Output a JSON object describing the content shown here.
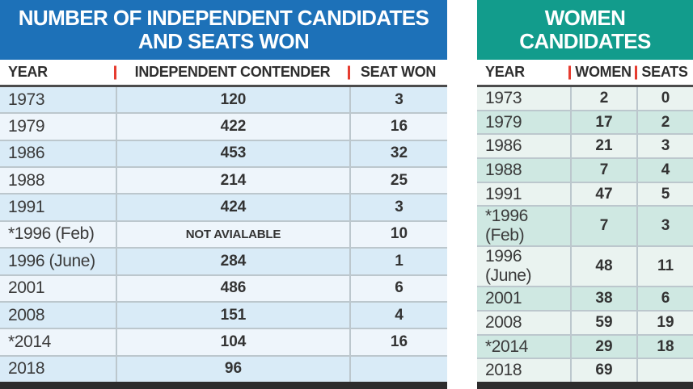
{
  "chart_data": [
    {
      "type": "table",
      "title": "NUMBER OF INDEPENDENT CANDIDATES AND SEATS WON",
      "title_lines": [
        "NUMBER OF INDEPENDENT CANDIDATES",
        "AND SEATS WON"
      ],
      "header_color": "#1d71b8",
      "columns": [
        "YEAR",
        "INDEPENDENT CONTENDER",
        "SEAT WON"
      ],
      "rows": [
        [
          "1973",
          "120",
          "3"
        ],
        [
          "1979",
          "422",
          "16"
        ],
        [
          "1986",
          "453",
          "32"
        ],
        [
          "1988",
          "214",
          "25"
        ],
        [
          "1991",
          "424",
          "3"
        ],
        [
          "*1996 (Feb)",
          "NOT AVIALABLE",
          "10"
        ],
        [
          "1996 (June)",
          "284",
          "1"
        ],
        [
          "2001",
          "486",
          "6"
        ],
        [
          "2008",
          "151",
          "4"
        ],
        [
          "*2014",
          "104",
          "16"
        ],
        [
          "2018",
          "96",
          ""
        ]
      ],
      "row_colors": {
        "tint": "#d9ebf7",
        "light": "#eef5fb"
      },
      "tinted_rows": "odd",
      "separator_tick_color": "#e63c30"
    },
    {
      "type": "table",
      "title": "WOMEN CANDIDATES",
      "title_lines": [
        "WOMEN",
        "CANDIDATES"
      ],
      "header_color": "#129c8c",
      "columns": [
        "YEAR",
        "WOMEN",
        "SEATS"
      ],
      "rows": [
        [
          "1973",
          "2",
          "0"
        ],
        [
          "1979",
          "17",
          "2"
        ],
        [
          "1986",
          "21",
          "3"
        ],
        [
          "1988",
          "7",
          "4"
        ],
        [
          "1991",
          "47",
          "5"
        ],
        [
          "*1996 (Feb)",
          "7",
          "3"
        ],
        [
          "1996 (June)",
          "48",
          "11"
        ],
        [
          "2001",
          "38",
          "6"
        ],
        [
          "2008",
          "59",
          "19"
        ],
        [
          "*2014",
          "29",
          "18"
        ],
        [
          "2018",
          "69",
          ""
        ]
      ],
      "row_colors": {
        "tint": "#cfe8e2",
        "light": "#eaf3f0"
      },
      "tinted_rows": "even",
      "separator_tick_color": "#e63c30"
    }
  ],
  "colors": {
    "header_rule": "#4b4b4b",
    "grid_line": "#bcc7cd",
    "bottom_bar": "#2d2d2d",
    "header_text": "#2e2e2e",
    "body_text": "#3a3a3a",
    "title_text": "#ffffff"
  }
}
